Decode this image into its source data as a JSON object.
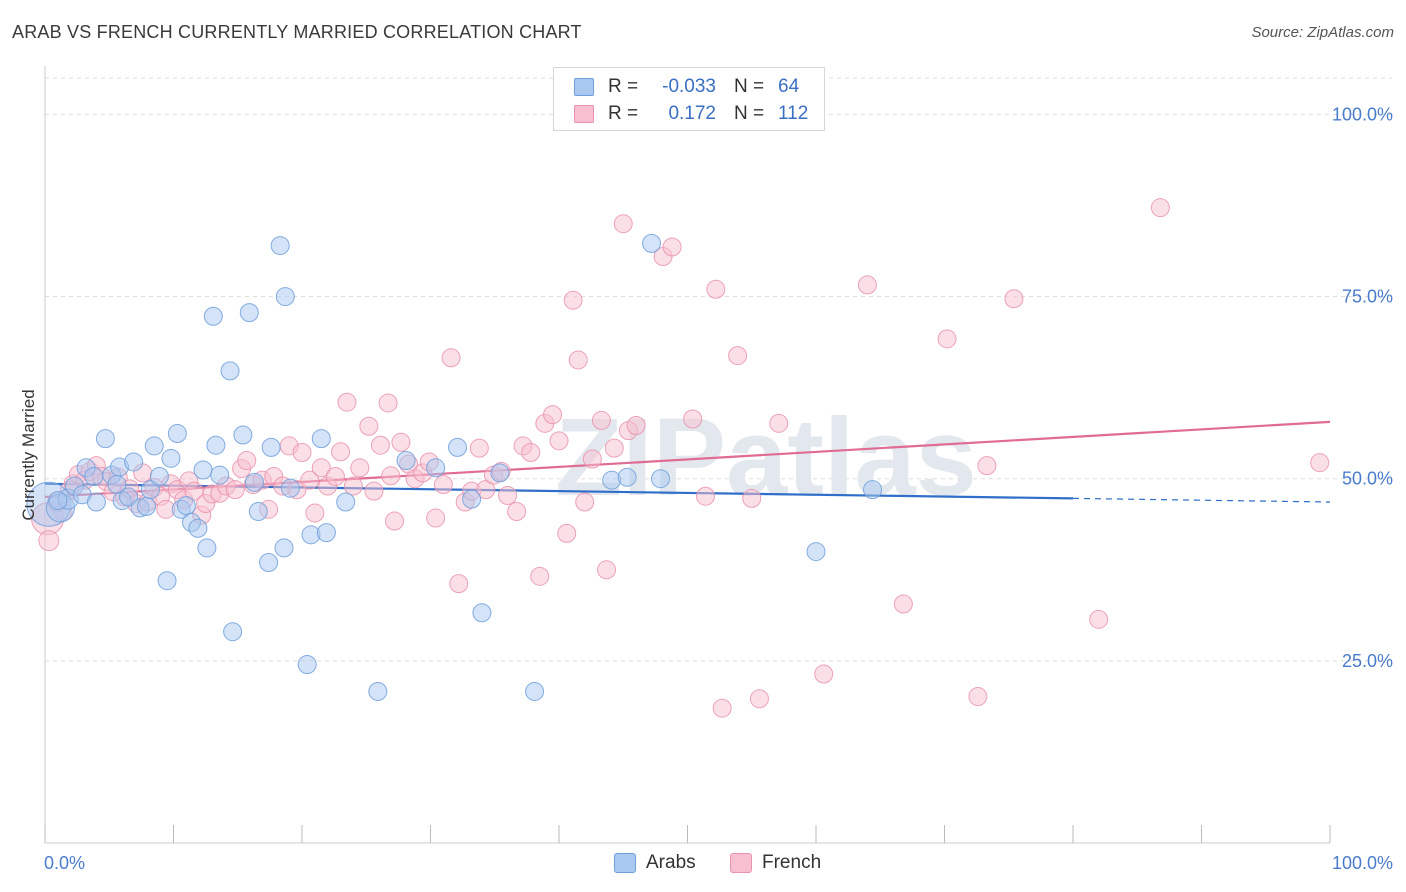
{
  "title": "ARAB VS FRENCH CURRENTLY MARRIED CORRELATION CHART",
  "source": "Source: ZipAtlas.com",
  "watermark": "ZIPatlas",
  "colors": {
    "arabs_fill": "#a9c8f0",
    "arabs_stroke": "#6f9fdc",
    "arabs_line": "#2f6fc9",
    "french_fill": "#f7bfd0",
    "french_stroke": "#e993ad",
    "french_line": "#e06b93",
    "tick": "#4a7ccc",
    "grid": "#dddddd"
  },
  "legend": {
    "rows": [
      {
        "series": "Arabs",
        "r_label": "R =",
        "r_value": "-0.033",
        "n_label": "N =",
        "n_value": "64"
      },
      {
        "series": "French",
        "r_label": "R =",
        "r_value": "0.172",
        "n_label": "N =",
        "n_value": "112"
      }
    ]
  },
  "chart_data": {
    "type": "scatter",
    "title": "ARAB VS FRENCH CURRENTLY MARRIED CORRELATION CHART",
    "xlabel": "",
    "ylabel": "Currently Married",
    "xlim": [
      0,
      100
    ],
    "ylim": [
      0,
      105
    ],
    "x_tick_labels": [
      "0.0%",
      "100.0%"
    ],
    "y_ticks": [
      25,
      50,
      75,
      100
    ],
    "y_tick_labels": [
      "25.0%",
      "50.0%",
      "75.0%",
      "100.0%"
    ],
    "grid": "horizontal dashed",
    "legend_position": "top-center",
    "series": [
      {
        "name": "Arabs",
        "r": -0.033,
        "n": 64,
        "trend": {
          "x0": 0,
          "y0": 49.3,
          "x1": 80,
          "y1": 47.3,
          "dash_to_x": 100,
          "dash_to_y": 46.8
        },
        "points": [
          {
            "x": 0.3,
            "y": 46.5,
            "s": 22
          },
          {
            "x": 1.2,
            "y": 46.0,
            "s": 14
          },
          {
            "x": 1.8,
            "y": 47.2,
            "s": 10
          },
          {
            "x": 2.3,
            "y": 49.0,
            "s": 9
          },
          {
            "x": 2.9,
            "y": 47.8,
            "s": 9
          },
          {
            "x": 3.2,
            "y": 51.5,
            "s": 9
          },
          {
            "x": 3.8,
            "y": 50.3,
            "s": 9
          },
          {
            "x": 4.0,
            "y": 46.8,
            "s": 9
          },
          {
            "x": 4.7,
            "y": 55.5,
            "s": 9
          },
          {
            "x": 5.2,
            "y": 50.5,
            "s": 9
          },
          {
            "x": 5.6,
            "y": 49.2,
            "s": 9
          },
          {
            "x": 5.8,
            "y": 51.6,
            "s": 9
          },
          {
            "x": 6.0,
            "y": 47.0,
            "s": 9
          },
          {
            "x": 6.5,
            "y": 47.5,
            "s": 9
          },
          {
            "x": 6.9,
            "y": 52.3,
            "s": 9
          },
          {
            "x": 7.4,
            "y": 46.0,
            "s": 9
          },
          {
            "x": 7.9,
            "y": 46.2,
            "s": 9
          },
          {
            "x": 8.2,
            "y": 48.5,
            "s": 9
          },
          {
            "x": 8.5,
            "y": 54.5,
            "s": 9
          },
          {
            "x": 8.9,
            "y": 50.3,
            "s": 9
          },
          {
            "x": 9.5,
            "y": 36.0,
            "s": 9
          },
          {
            "x": 9.8,
            "y": 52.8,
            "s": 9
          },
          {
            "x": 10.3,
            "y": 56.2,
            "s": 9
          },
          {
            "x": 10.6,
            "y": 45.8,
            "s": 9
          },
          {
            "x": 11.0,
            "y": 46.3,
            "s": 9
          },
          {
            "x": 11.4,
            "y": 44.0,
            "s": 9
          },
          {
            "x": 11.9,
            "y": 43.2,
            "s": 9
          },
          {
            "x": 12.3,
            "y": 51.2,
            "s": 9
          },
          {
            "x": 12.6,
            "y": 40.5,
            "s": 9
          },
          {
            "x": 13.1,
            "y": 72.3,
            "s": 9
          },
          {
            "x": 13.6,
            "y": 50.5,
            "s": 9
          },
          {
            "x": 13.3,
            "y": 54.6,
            "s": 9
          },
          {
            "x": 14.4,
            "y": 64.8,
            "s": 9
          },
          {
            "x": 14.6,
            "y": 29.0,
            "s": 9
          },
          {
            "x": 15.4,
            "y": 56.0,
            "s": 9
          },
          {
            "x": 15.9,
            "y": 72.8,
            "s": 9
          },
          {
            "x": 16.3,
            "y": 49.5,
            "s": 9
          },
          {
            "x": 16.6,
            "y": 45.5,
            "s": 9
          },
          {
            "x": 17.4,
            "y": 38.5,
            "s": 9
          },
          {
            "x": 17.6,
            "y": 54.3,
            "s": 9
          },
          {
            "x": 18.3,
            "y": 82.0,
            "s": 9
          },
          {
            "x": 18.6,
            "y": 40.5,
            "s": 9
          },
          {
            "x": 18.7,
            "y": 75.0,
            "s": 9
          },
          {
            "x": 19.1,
            "y": 48.7,
            "s": 9
          },
          {
            "x": 20.4,
            "y": 24.5,
            "s": 9
          },
          {
            "x": 20.7,
            "y": 42.3,
            "s": 9
          },
          {
            "x": 21.5,
            "y": 55.5,
            "s": 9
          },
          {
            "x": 21.9,
            "y": 42.6,
            "s": 9
          },
          {
            "x": 23.4,
            "y": 46.8,
            "s": 9
          },
          {
            "x": 25.9,
            "y": 20.8,
            "s": 9
          },
          {
            "x": 28.1,
            "y": 52.5,
            "s": 9
          },
          {
            "x": 30.4,
            "y": 51.5,
            "s": 9
          },
          {
            "x": 32.1,
            "y": 54.3,
            "s": 9
          },
          {
            "x": 33.2,
            "y": 47.2,
            "s": 9
          },
          {
            "x": 34.0,
            "y": 31.6,
            "s": 9
          },
          {
            "x": 35.4,
            "y": 50.8,
            "s": 9
          },
          {
            "x": 38.1,
            "y": 20.8,
            "s": 9
          },
          {
            "x": 44.1,
            "y": 49.8,
            "s": 9
          },
          {
            "x": 45.3,
            "y": 50.2,
            "s": 9
          },
          {
            "x": 47.2,
            "y": 82.3,
            "s": 9
          },
          {
            "x": 47.9,
            "y": 50.0,
            "s": 9
          },
          {
            "x": 60.0,
            "y": 40.0,
            "s": 9
          },
          {
            "x": 64.4,
            "y": 48.5,
            "s": 9
          },
          {
            "x": 1.0,
            "y": 47.0,
            "s": 9
          }
        ]
      },
      {
        "name": "French",
        "r": 0.172,
        "n": 112,
        "trend": {
          "x0": 0,
          "y0": 47.5,
          "x1": 100,
          "y1": 57.8
        },
        "points": [
          {
            "x": 0.2,
            "y": 44.5,
            "s": 16
          },
          {
            "x": 0.3,
            "y": 41.5,
            "s": 10
          },
          {
            "x": 1.0,
            "y": 46.8,
            "s": 10
          },
          {
            "x": 1.4,
            "y": 45.5,
            "s": 9
          },
          {
            "x": 1.9,
            "y": 48.4,
            "s": 9
          },
          {
            "x": 2.2,
            "y": 49.3,
            "s": 9
          },
          {
            "x": 2.6,
            "y": 50.6,
            "s": 9
          },
          {
            "x": 3.1,
            "y": 49.8,
            "s": 9
          },
          {
            "x": 3.5,
            "y": 51.0,
            "s": 9
          },
          {
            "x": 4.0,
            "y": 51.8,
            "s": 9
          },
          {
            "x": 4.4,
            "y": 50.3,
            "s": 9
          },
          {
            "x": 4.8,
            "y": 49.6,
            "s": 9
          },
          {
            "x": 5.3,
            "y": 48.2,
            "s": 9
          },
          {
            "x": 5.7,
            "y": 50.2,
            "s": 9
          },
          {
            "x": 6.2,
            "y": 47.5,
            "s": 9
          },
          {
            "x": 6.6,
            "y": 48.6,
            "s": 9
          },
          {
            "x": 7.1,
            "y": 46.6,
            "s": 9
          },
          {
            "x": 7.6,
            "y": 50.8,
            "s": 9
          },
          {
            "x": 8.0,
            "y": 46.8,
            "s": 9
          },
          {
            "x": 8.5,
            "y": 48.8,
            "s": 9
          },
          {
            "x": 9.0,
            "y": 47.6,
            "s": 9
          },
          {
            "x": 9.4,
            "y": 45.8,
            "s": 9
          },
          {
            "x": 9.8,
            "y": 49.3,
            "s": 9
          },
          {
            "x": 10.3,
            "y": 48.5,
            "s": 9
          },
          {
            "x": 10.8,
            "y": 47.1,
            "s": 9
          },
          {
            "x": 11.2,
            "y": 49.7,
            "s": 9
          },
          {
            "x": 11.6,
            "y": 48.3,
            "s": 9
          },
          {
            "x": 12.2,
            "y": 45.0,
            "s": 9
          },
          {
            "x": 12.5,
            "y": 46.6,
            "s": 9
          },
          {
            "x": 13.0,
            "y": 47.9,
            "s": 9
          },
          {
            "x": 13.6,
            "y": 48.0,
            "s": 9
          },
          {
            "x": 14.1,
            "y": 49.0,
            "s": 9
          },
          {
            "x": 14.8,
            "y": 48.5,
            "s": 9
          },
          {
            "x": 15.3,
            "y": 51.4,
            "s": 9
          },
          {
            "x": 15.7,
            "y": 52.5,
            "s": 9
          },
          {
            "x": 16.2,
            "y": 49.2,
            "s": 9
          },
          {
            "x": 16.9,
            "y": 49.8,
            "s": 9
          },
          {
            "x": 17.4,
            "y": 45.8,
            "s": 9
          },
          {
            "x": 17.8,
            "y": 50.3,
            "s": 9
          },
          {
            "x": 18.5,
            "y": 49.0,
            "s": 9
          },
          {
            "x": 19.0,
            "y": 54.5,
            "s": 9
          },
          {
            "x": 19.6,
            "y": 48.5,
            "s": 9
          },
          {
            "x": 20.0,
            "y": 53.6,
            "s": 9
          },
          {
            "x": 20.6,
            "y": 49.8,
            "s": 9
          },
          {
            "x": 21.0,
            "y": 45.3,
            "s": 9
          },
          {
            "x": 21.5,
            "y": 51.5,
            "s": 9
          },
          {
            "x": 22.0,
            "y": 49.0,
            "s": 9
          },
          {
            "x": 22.6,
            "y": 50.3,
            "s": 9
          },
          {
            "x": 23.0,
            "y": 53.7,
            "s": 9
          },
          {
            "x": 23.5,
            "y": 60.5,
            "s": 9
          },
          {
            "x": 24.0,
            "y": 49.0,
            "s": 9
          },
          {
            "x": 24.5,
            "y": 51.5,
            "s": 9
          },
          {
            "x": 25.2,
            "y": 57.2,
            "s": 9
          },
          {
            "x": 25.6,
            "y": 48.3,
            "s": 9
          },
          {
            "x": 26.1,
            "y": 54.6,
            "s": 9
          },
          {
            "x": 26.7,
            "y": 60.4,
            "s": 9
          },
          {
            "x": 27.2,
            "y": 44.2,
            "s": 9
          },
          {
            "x": 27.7,
            "y": 55.0,
            "s": 9
          },
          {
            "x": 28.3,
            "y": 52.0,
            "s": 9
          },
          {
            "x": 28.8,
            "y": 50.0,
            "s": 9
          },
          {
            "x": 29.4,
            "y": 50.8,
            "s": 9
          },
          {
            "x": 29.9,
            "y": 52.3,
            "s": 9
          },
          {
            "x": 30.4,
            "y": 44.6,
            "s": 9
          },
          {
            "x": 31.0,
            "y": 49.2,
            "s": 9
          },
          {
            "x": 31.6,
            "y": 66.6,
            "s": 9
          },
          {
            "x": 32.2,
            "y": 35.6,
            "s": 9
          },
          {
            "x": 32.7,
            "y": 46.8,
            "s": 9
          },
          {
            "x": 33.2,
            "y": 48.3,
            "s": 9
          },
          {
            "x": 33.8,
            "y": 54.2,
            "s": 9
          },
          {
            "x": 34.3,
            "y": 48.5,
            "s": 9
          },
          {
            "x": 34.9,
            "y": 50.5,
            "s": 9
          },
          {
            "x": 35.5,
            "y": 51.0,
            "s": 9
          },
          {
            "x": 36.0,
            "y": 47.7,
            "s": 9
          },
          {
            "x": 36.7,
            "y": 45.5,
            "s": 9
          },
          {
            "x": 37.2,
            "y": 54.5,
            "s": 9
          },
          {
            "x": 37.8,
            "y": 53.6,
            "s": 9
          },
          {
            "x": 38.5,
            "y": 36.6,
            "s": 9
          },
          {
            "x": 38.9,
            "y": 57.6,
            "s": 9
          },
          {
            "x": 39.5,
            "y": 58.8,
            "s": 9
          },
          {
            "x": 40.0,
            "y": 55.2,
            "s": 9
          },
          {
            "x": 40.6,
            "y": 42.5,
            "s": 9
          },
          {
            "x": 41.1,
            "y": 74.5,
            "s": 9
          },
          {
            "x": 41.5,
            "y": 66.3,
            "s": 9
          },
          {
            "x": 42.0,
            "y": 46.8,
            "s": 9
          },
          {
            "x": 42.6,
            "y": 52.7,
            "s": 9
          },
          {
            "x": 43.3,
            "y": 58.0,
            "s": 9
          },
          {
            "x": 43.7,
            "y": 37.5,
            "s": 9
          },
          {
            "x": 44.3,
            "y": 54.2,
            "s": 9
          },
          {
            "x": 45.0,
            "y": 85.0,
            "s": 9
          },
          {
            "x": 45.4,
            "y": 56.6,
            "s": 9
          },
          {
            "x": 46.0,
            "y": 57.3,
            "s": 9
          },
          {
            "x": 48.1,
            "y": 80.5,
            "s": 9
          },
          {
            "x": 48.8,
            "y": 81.8,
            "s": 9
          },
          {
            "x": 50.4,
            "y": 58.2,
            "s": 9
          },
          {
            "x": 51.4,
            "y": 47.6,
            "s": 9
          },
          {
            "x": 52.2,
            "y": 76.0,
            "s": 9
          },
          {
            "x": 52.7,
            "y": 18.5,
            "s": 9
          },
          {
            "x": 53.9,
            "y": 66.9,
            "s": 9
          },
          {
            "x": 55.0,
            "y": 47.3,
            "s": 9
          },
          {
            "x": 55.6,
            "y": 19.8,
            "s": 9
          },
          {
            "x": 57.1,
            "y": 57.6,
            "s": 9
          },
          {
            "x": 60.6,
            "y": 23.2,
            "s": 9
          },
          {
            "x": 64.0,
            "y": 76.6,
            "s": 9
          },
          {
            "x": 66.8,
            "y": 32.8,
            "s": 9
          },
          {
            "x": 70.2,
            "y": 69.2,
            "s": 9
          },
          {
            "x": 72.6,
            "y": 20.1,
            "s": 9
          },
          {
            "x": 73.3,
            "y": 51.8,
            "s": 9
          },
          {
            "x": 75.4,
            "y": 74.7,
            "s": 9
          },
          {
            "x": 82.0,
            "y": 30.7,
            "s": 9
          },
          {
            "x": 86.8,
            "y": 87.2,
            "s": 9
          },
          {
            "x": 99.2,
            "y": 52.2,
            "s": 9
          },
          {
            "x": 26.9,
            "y": 50.4,
            "s": 9
          }
        ]
      }
    ]
  }
}
